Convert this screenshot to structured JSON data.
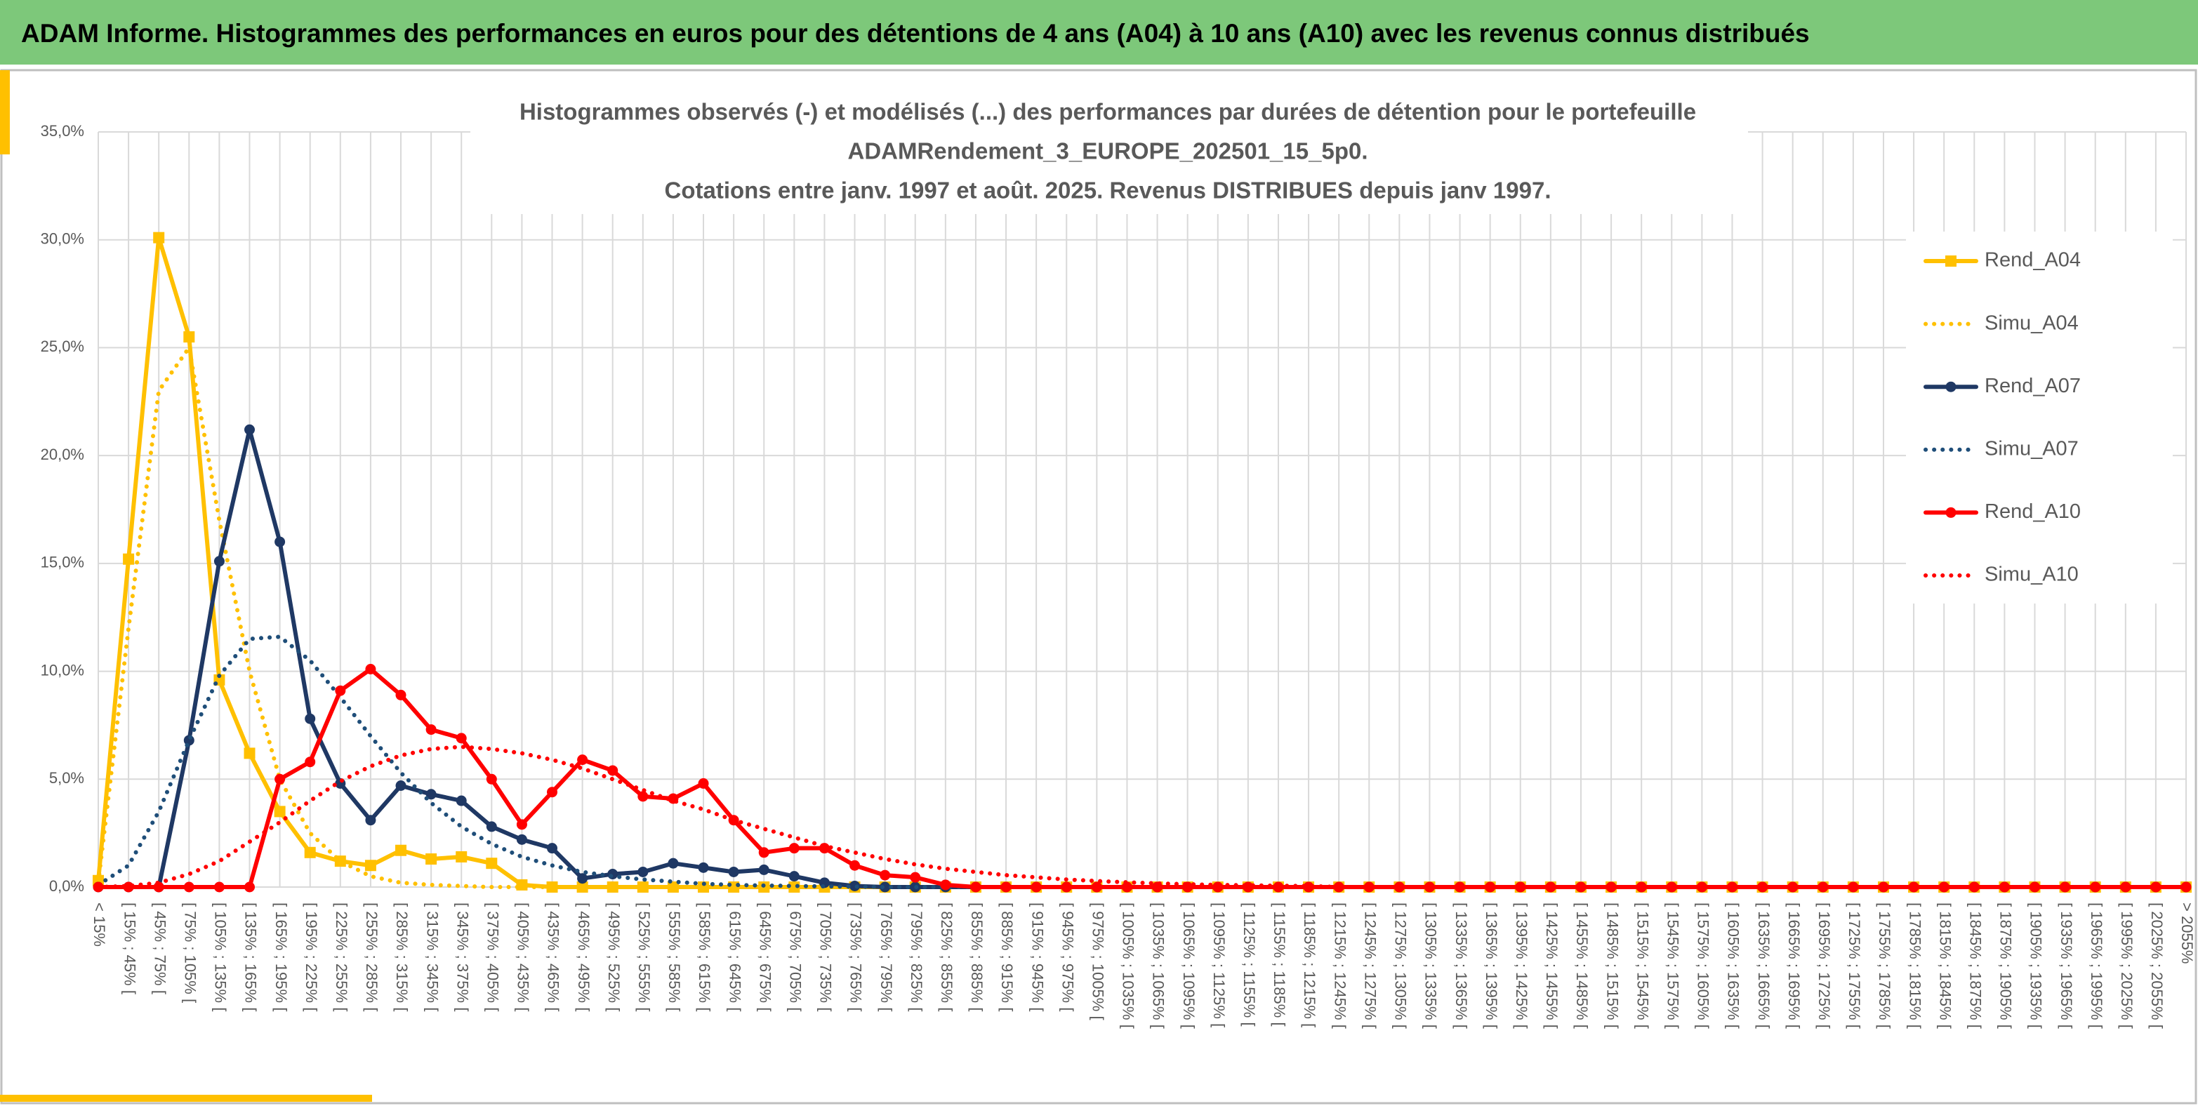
{
  "header": {
    "title": "ADAM Informe. Histogrammes des performances en euros pour des détentions de 4 ans (A04) à 10 ans (A10) avec les revenus connus distribués"
  },
  "chart_data": {
    "type": "line",
    "title": [
      "Histogrammes observés (-) et modélisés (...) des performances par durées de détention pour le portefeuille",
      "ADAMRendement_3_EUROPE_202501_15_5p0.",
      "Cotations entre janv. 1997 et août. 2025. Revenus DISTRIBUES depuis janv 1997."
    ],
    "categories": [
      "< 15%",
      "[ 15% ; 45% [",
      "[ 45% ; 75% [",
      "[ 75% ; 105% [",
      "[ 105% ; 135% [",
      "[ 135% ; 165% [",
      "[ 165% ; 195% [",
      "[ 195% ; 225% [",
      "[ 225% ; 255% [",
      "[ 255% ; 285% [",
      "[ 285% ; 315% [",
      "[ 315% ; 345% [",
      "[ 345% ; 375% [",
      "[ 375% ; 405% [",
      "[ 405% ; 435% [",
      "[ 435% ; 465% [",
      "[ 465% ; 495% [",
      "[ 495% ; 525% [",
      "[ 525% ; 555% [",
      "[ 555% ; 585% [",
      "[ 585% ; 615% [",
      "[ 615% ; 645% [",
      "[ 645% ; 675% [",
      "[ 675% ; 705% [",
      "[ 705% ; 735% [",
      "[ 735% ; 765% [",
      "[ 765% ; 795% [",
      "[ 795% ; 825% [",
      "[ 825% ; 855% [",
      "[ 855% ; 885% [",
      "[ 885% ; 915% [",
      "[ 915% ; 945% [",
      "[ 945% ; 975% [",
      "[ 975% ; 1005% [",
      "[ 1005% ; 1035% [",
      "[ 1035% ; 1065% [",
      "[ 1065% ; 1095% [",
      "[ 1095% ; 1125% [",
      "[ 1125% ; 1155% [",
      "[ 1155% ; 1185% [",
      "[ 1185% ; 1215% [",
      "[ 1215% ; 1245% [",
      "[ 1245% ; 1275% [",
      "[ 1275% ; 1305% [",
      "[ 1305% ; 1335% [",
      "[ 1335% ; 1365% [",
      "[ 1365% ; 1395% [",
      "[ 1395% ; 1425% [",
      "[ 1425% ; 1455% [",
      "[ 1455% ; 1485% [",
      "[ 1485% ; 1515% [",
      "[ 1515% ; 1545% [",
      "[ 1545% ; 1575% [",
      "[ 1575% ; 1605% [",
      "[ 1605% ; 1635% [",
      "[ 1635% ; 1665% [",
      "[ 1665% ; 1695% [",
      "[ 1695% ; 1725% [",
      "[ 1725% ; 1755% [",
      "[ 1755% ; 1785% [",
      "[ 1785% ; 1815% [",
      "[ 1815% ; 1845% [",
      "[ 1845% ; 1875% [",
      "[ 1875% ; 1905% [",
      "[ 1905% ; 1935% [",
      "[ 1935% ; 1965% [",
      "[ 1965% ; 1995% [",
      "[ 1995% ; 2025% [",
      "[ 2025% ; 2055% [",
      "> 2055%"
    ],
    "series": [
      {
        "name": "Rend_A04",
        "color": "#FFC000",
        "style": "solid",
        "marker": "square",
        "values": [
          0.3,
          15.2,
          30.1,
          25.5,
          9.6,
          6.2,
          3.5,
          1.6,
          1.2,
          1.0,
          1.7,
          1.3,
          1.4,
          1.1,
          0.1,
          0,
          0,
          0,
          0,
          0,
          0,
          0,
          0,
          0,
          0,
          0,
          0,
          0,
          0,
          0,
          0,
          0,
          0,
          0,
          0,
          0,
          0,
          0,
          0,
          0,
          0,
          0,
          0,
          0,
          0,
          0,
          0,
          0,
          0,
          0,
          0,
          0,
          0,
          0,
          0,
          0,
          0,
          0,
          0,
          0,
          0,
          0,
          0,
          0,
          0,
          0,
          0,
          0,
          0,
          0
        ]
      },
      {
        "name": "Simu_A04",
        "color": "#FFC000",
        "style": "dotted",
        "marker": null,
        "values": [
          0.2,
          12,
          23,
          25,
          17,
          10,
          5,
          2.5,
          1.2,
          0.5,
          0.2,
          0.1,
          0.05,
          0,
          0,
          0,
          0,
          0,
          0,
          0,
          0,
          0,
          0,
          0,
          0,
          0,
          0,
          0,
          0,
          0,
          0,
          0,
          0,
          0,
          0,
          0,
          0,
          0,
          0,
          0,
          0,
          0,
          0,
          0,
          0,
          0,
          0,
          0,
          0,
          0,
          0,
          0,
          0,
          0,
          0,
          0,
          0,
          0,
          0,
          0,
          0,
          0,
          0,
          0,
          0,
          0,
          0,
          0,
          0,
          0
        ]
      },
      {
        "name": "Rend_A07",
        "color": "#1F3864",
        "style": "solid",
        "marker": "circle",
        "values": [
          0,
          0,
          0,
          6.8,
          15.1,
          21.2,
          16.0,
          7.8,
          4.8,
          3.1,
          4.7,
          4.3,
          4.0,
          2.8,
          2.2,
          1.8,
          0.4,
          0.6,
          0.7,
          1.1,
          0.9,
          0.7,
          0.8,
          0.5,
          0.2,
          0.05,
          0,
          0,
          0,
          0,
          0,
          0,
          0,
          0,
          0,
          0,
          0,
          0,
          0,
          0,
          0,
          0,
          0,
          0,
          0,
          0,
          0,
          0,
          0,
          0,
          0,
          0,
          0,
          0,
          0,
          0,
          0,
          0,
          0,
          0,
          0,
          0,
          0,
          0,
          0,
          0,
          0,
          0,
          0,
          0
        ]
      },
      {
        "name": "Simu_A07",
        "color": "#1F4E79",
        "style": "dotted",
        "marker": null,
        "values": [
          0.1,
          1.0,
          3.5,
          6.8,
          9.8,
          11.5,
          11.6,
          10.5,
          8.8,
          7.0,
          5.3,
          3.9,
          2.8,
          2.0,
          1.4,
          1.0,
          0.7,
          0.5,
          0.35,
          0.25,
          0.15,
          0.1,
          0.07,
          0.05,
          0.03,
          0.02,
          0,
          0,
          0,
          0,
          0,
          0,
          0,
          0,
          0,
          0,
          0,
          0,
          0,
          0,
          0,
          0,
          0,
          0,
          0,
          0,
          0,
          0,
          0,
          0,
          0,
          0,
          0,
          0,
          0,
          0,
          0,
          0,
          0,
          0,
          0,
          0,
          0,
          0,
          0,
          0,
          0,
          0,
          0,
          0
        ]
      },
      {
        "name": "Rend_A10",
        "color": "#FF0000",
        "style": "solid",
        "marker": "circle",
        "values": [
          0,
          0,
          0,
          0,
          0,
          0,
          5.0,
          5.8,
          9.1,
          10.1,
          8.9,
          7.3,
          6.9,
          5.0,
          2.9,
          4.4,
          5.9,
          5.4,
          4.2,
          4.1,
          4.8,
          3.1,
          1.6,
          1.8,
          1.8,
          1.0,
          0.55,
          0.45,
          0.1,
          0,
          0,
          0,
          0,
          0,
          0,
          0,
          0,
          0,
          0,
          0,
          0,
          0,
          0,
          0,
          0,
          0,
          0,
          0,
          0,
          0,
          0,
          0,
          0,
          0,
          0,
          0,
          0,
          0,
          0,
          0,
          0,
          0,
          0,
          0,
          0,
          0,
          0,
          0,
          0,
          0
        ]
      },
      {
        "name": "Simu_A10",
        "color": "#FF0000",
        "style": "dotted",
        "marker": null,
        "values": [
          0,
          0.05,
          0.2,
          0.6,
          1.2,
          2.1,
          3.0,
          4.0,
          4.9,
          5.6,
          6.1,
          6.4,
          6.5,
          6.4,
          6.2,
          5.9,
          5.5,
          5.0,
          4.5,
          4.0,
          3.6,
          3.1,
          2.7,
          2.3,
          1.9,
          1.6,
          1.3,
          1.05,
          0.85,
          0.7,
          0.55,
          0.45,
          0.35,
          0.28,
          0.22,
          0.17,
          0.13,
          0.1,
          0.08,
          0.06,
          0.05,
          0,
          0,
          0,
          0,
          0,
          0,
          0,
          0,
          0,
          0,
          0,
          0,
          0,
          0,
          0,
          0,
          0,
          0,
          0,
          0,
          0,
          0,
          0,
          0,
          0,
          0,
          0,
          0,
          0
        ]
      }
    ],
    "ylim": [
      0,
      35
    ],
    "yticks": [
      {
        "value": 0,
        "label": "0,0%"
      },
      {
        "value": 5,
        "label": "5,0%"
      },
      {
        "value": 10,
        "label": "10,0%"
      },
      {
        "value": 15,
        "label": "15,0%"
      },
      {
        "value": 20,
        "label": "20,0%"
      },
      {
        "value": 25,
        "label": "25,0%"
      },
      {
        "value": 30,
        "label": "30,0%"
      },
      {
        "value": 35,
        "label": "35,0%"
      }
    ],
    "grid": true,
    "legend": "right"
  }
}
